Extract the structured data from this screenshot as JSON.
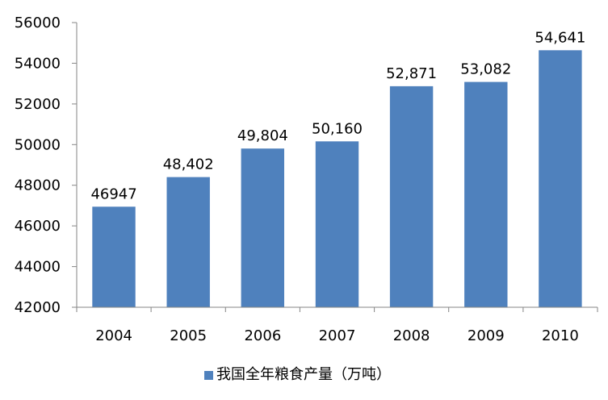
{
  "chart_data": {
    "type": "bar",
    "categories": [
      "2004",
      "2005",
      "2006",
      "2007",
      "2008",
      "2009",
      "2010"
    ],
    "series": [
      {
        "name": "我国全年粮食产量（万吨）",
        "values": [
          46947,
          48402,
          49804,
          50160,
          52871,
          53082,
          54641
        ],
        "value_labels": [
          "46947",
          "48,402",
          "49,804",
          "50,160",
          "52,871",
          "53,082",
          "54,641"
        ],
        "color": "#4F81BD"
      }
    ],
    "ylim": [
      42000,
      56000
    ],
    "yticks": [
      42000,
      44000,
      46000,
      48000,
      50000,
      52000,
      54000,
      56000
    ],
    "ytick_labels": [
      "42000",
      "44000",
      "46000",
      "48000",
      "50000",
      "52000",
      "54000",
      "56000"
    ],
    "grid": false,
    "legend_position": "bottom",
    "axis_color": "#868686"
  }
}
